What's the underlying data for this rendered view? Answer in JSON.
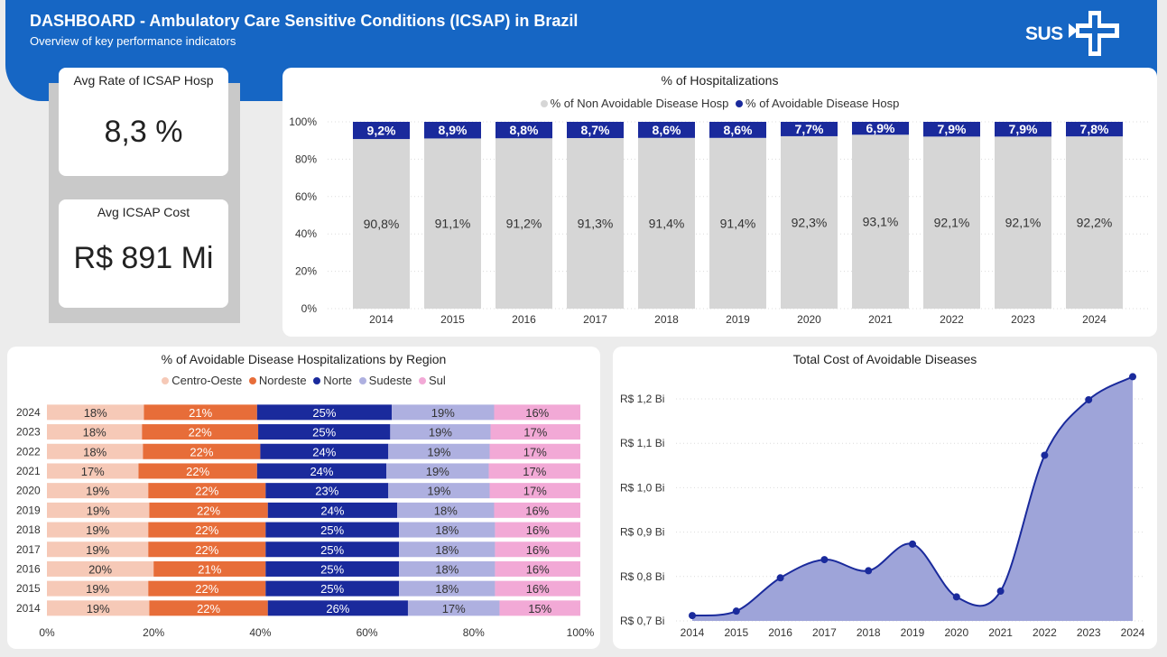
{
  "header": {
    "title": "DASHBOARD - Ambulatory Care Sensitive Conditions (ICSAP) in Brazil",
    "subtitle": "Overview of key performance indicators",
    "logo_text": "SUS"
  },
  "kpis": {
    "rate_label": "Avg Rate of ICSAP Hosp",
    "rate_value": "8,3 %",
    "cost_label": "Avg ICSAP Cost",
    "cost_value": "R$ 891 Mi"
  },
  "colors": {
    "header": "#1666c4",
    "non_avoidable": "#d6d6d6",
    "avoidable": "#1a2a9c",
    "centro_oeste": "#f6c9b7",
    "nordeste": "#e76d39",
    "norte": "#1a2a9c",
    "sudeste": "#aeb0e0",
    "sul": "#f2a9d6",
    "area_fill": "#9ea4d9",
    "area_line": "#1a2a9c"
  },
  "chart_data": [
    {
      "id": "hospitalizations",
      "type": "bar",
      "stacked": "percent",
      "title": "% of Hospitalizations",
      "categories": [
        "2014",
        "2015",
        "2016",
        "2017",
        "2018",
        "2019",
        "2020",
        "2021",
        "2022",
        "2023",
        "2024"
      ],
      "series": [
        {
          "name": "% of Non Avoidable Disease Hosp",
          "values": [
            90.8,
            91.1,
            91.2,
            91.3,
            91.4,
            91.4,
            92.3,
            93.1,
            92.1,
            92.1,
            92.2
          ],
          "labels": [
            "90,8%",
            "91,1%",
            "91,2%",
            "91,3%",
            "91,4%",
            "91,4%",
            "92,3%",
            "93,1%",
            "92,1%",
            "92,1%",
            "92,2%"
          ]
        },
        {
          "name": "% of Avoidable Disease Hosp",
          "values": [
            9.2,
            8.9,
            8.8,
            8.7,
            8.6,
            8.6,
            7.7,
            6.9,
            7.9,
            7.9,
            7.8
          ],
          "labels": [
            "9,2%",
            "8,9%",
            "8,8%",
            "8,7%",
            "8,6%",
            "8,6%",
            "7,7%",
            "6,9%",
            "7,9%",
            "7,9%",
            "7,8%"
          ]
        }
      ],
      "yticks": [
        "0%",
        "20%",
        "40%",
        "60%",
        "80%",
        "100%"
      ],
      "ylim": [
        0,
        100
      ],
      "legend": "top",
      "grid": true
    },
    {
      "id": "region",
      "type": "bar",
      "orientation": "horizontal",
      "stacked": "percent",
      "title": "% of Avoidable Disease Hospitalizations by Region",
      "categories": [
        "2024",
        "2023",
        "2022",
        "2021",
        "2020",
        "2019",
        "2018",
        "2017",
        "2016",
        "2015",
        "2014"
      ],
      "series": [
        {
          "name": "Centro-Oeste",
          "values": [
            18,
            18,
            18,
            17,
            19,
            19,
            19,
            19,
            20,
            19,
            19
          ]
        },
        {
          "name": "Nordeste",
          "values": [
            21,
            22,
            22,
            22,
            22,
            22,
            22,
            22,
            21,
            22,
            22
          ]
        },
        {
          "name": "Norte",
          "values": [
            25,
            25,
            24,
            24,
            23,
            24,
            25,
            25,
            25,
            25,
            26
          ]
        },
        {
          "name": "Sudeste",
          "values": [
            19,
            19,
            19,
            19,
            19,
            18,
            18,
            18,
            18,
            18,
            17
          ]
        },
        {
          "name": "Sul",
          "values": [
            16,
            17,
            17,
            17,
            17,
            16,
            16,
            16,
            16,
            16,
            15
          ]
        }
      ],
      "xticks": [
        "0%",
        "20%",
        "40%",
        "60%",
        "80%",
        "100%"
      ],
      "xlim": [
        0,
        100
      ],
      "legend": "top"
    },
    {
      "id": "cost",
      "type": "area",
      "title": "Total Cost of Avoidable Diseases",
      "x": [
        "2014",
        "2015",
        "2016",
        "2017",
        "2018",
        "2019",
        "2020",
        "2021",
        "2022",
        "2023",
        "2024"
      ],
      "y": [
        0.712,
        0.722,
        0.797,
        0.838,
        0.813,
        0.873,
        0.754,
        0.767,
        1.073,
        1.198,
        1.25
      ],
      "yticks": [
        "R$ 0,7 Bi",
        "R$ 0,8 Bi",
        "R$ 0,9 Bi",
        "R$ 1,0 Bi",
        "R$ 1,1 Bi",
        "R$ 1,2 Bi"
      ],
      "ylim": [
        0.7,
        1.2
      ],
      "grid": true
    }
  ]
}
